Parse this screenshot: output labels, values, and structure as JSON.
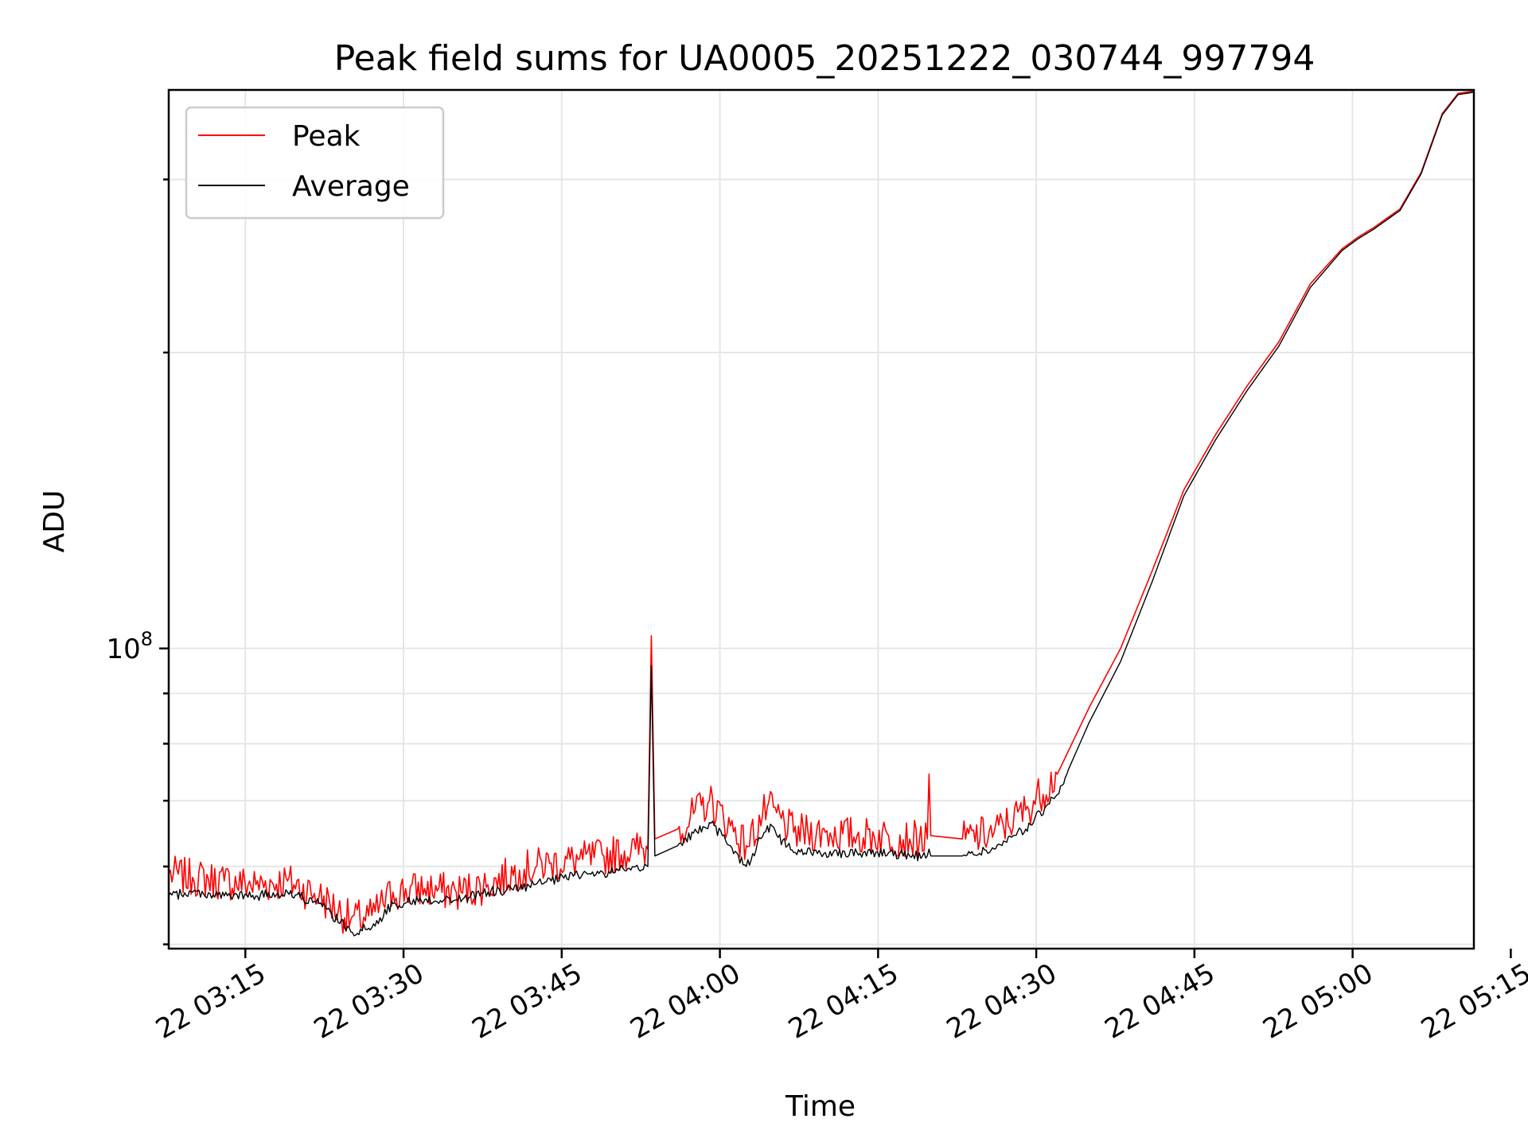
{
  "chart_data": {
    "type": "line",
    "title": "Peak field sums for UA0005_20251222_030744_997794",
    "xlabel": "Time",
    "ylabel": "ADU",
    "yscale": "log",
    "grid": true,
    "legend_position": "top-left",
    "x_ticks": [
      "22 03:15",
      "22 03:30",
      "22 03:45",
      "22 04:00",
      "22 04:15",
      "22 04:30",
      "22 04:45",
      "22 05:00",
      "22 05:15"
    ],
    "y_tick_labels": [
      {
        "base": "10",
        "exponent": "8",
        "value": 100000000
      }
    ],
    "xlim": [
      "2025-12-22 03:07:44",
      "2025-12-22 05:11:30"
    ],
    "ylim": [
      49500000,
      370000000
    ],
    "series": [
      {
        "name": "Peak",
        "color": "#ff0000",
        "points": [
          [
            "2025-12-22 03:07:44",
            59000000
          ],
          [
            "2025-12-22 03:10:00",
            58500000
          ],
          [
            "2025-12-22 03:13:00",
            58000000
          ],
          [
            "2025-12-22 03:16:00",
            57500000
          ],
          [
            "2025-12-22 03:19:00",
            58000000
          ],
          [
            "2025-12-22 03:22:00",
            56000000
          ],
          [
            "2025-12-22 03:25:00",
            53000000
          ],
          [
            "2025-12-22 03:27:00",
            53500000
          ],
          [
            "2025-12-22 03:29:00",
            56500000
          ],
          [
            "2025-12-22 03:32:00",
            57000000
          ],
          [
            "2025-12-22 03:35:00",
            56500000
          ],
          [
            "2025-12-22 03:38:00",
            57500000
          ],
          [
            "2025-12-22 03:41:00",
            59500000
          ],
          [
            "2025-12-22 03:44:00",
            60500000
          ],
          [
            "2025-12-22 03:47:00",
            61000000
          ],
          [
            "2025-12-22 03:49:00",
            61500000
          ],
          [
            "2025-12-22 03:52:00",
            62500000
          ],
          [
            "2025-12-22 03:53:10",
            62500000
          ],
          [
            "2025-12-22 03:53:30",
            103000000
          ],
          [
            "2025-12-22 03:53:50",
            64000000
          ],
          [
            "2025-12-22 03:56:00",
            65500000
          ],
          [
            "2025-12-22 03:59:00",
            70000000
          ],
          [
            "2025-12-22 04:01:00",
            66000000
          ],
          [
            "2025-12-22 04:02:30",
            63000000
          ],
          [
            "2025-12-22 04:04:30",
            69000000
          ],
          [
            "2025-12-22 04:07:00",
            65000000
          ],
          [
            "2025-12-22 04:10:00",
            65000000
          ],
          [
            "2025-12-22 04:13:00",
            64500000
          ],
          [
            "2025-12-22 04:16:00",
            64500000
          ],
          [
            "2025-12-22 04:18:00",
            64000000
          ],
          [
            "2025-12-22 04:19:40",
            64000000
          ],
          [
            "2025-12-22 04:19:50",
            74500000
          ],
          [
            "2025-12-22 04:20:00",
            64500000
          ],
          [
            "2025-12-22 04:23:00",
            64000000
          ],
          [
            "2025-12-22 04:26:00",
            65000000
          ],
          [
            "2025-12-22 04:29:00",
            68500000
          ],
          [
            "2025-12-22 04:32:00",
            74500000
          ],
          [
            "2025-12-22 04:35:00",
            87000000
          ],
          [
            "2025-12-22 04:38:00",
            100000000
          ],
          [
            "2025-12-22 04:41:00",
            120000000
          ],
          [
            "2025-12-22 04:44:00",
            145000000
          ],
          [
            "2025-12-22 04:47:00",
            165000000
          ],
          [
            "2025-12-22 04:50:00",
            185000000
          ],
          [
            "2025-12-22 04:53:00",
            205000000
          ],
          [
            "2025-12-22 04:56:00",
            235000000
          ],
          [
            "2025-12-22 04:59:00",
            255000000
          ],
          [
            "2025-12-22 05:00:30",
            262000000
          ],
          [
            "2025-12-22 05:02:00",
            268000000
          ],
          [
            "2025-12-22 05:04:30",
            280000000
          ],
          [
            "2025-12-22 05:06:30",
            305000000
          ],
          [
            "2025-12-22 05:08:30",
            350000000
          ],
          [
            "2025-12-22 05:10:00",
            367000000
          ],
          [
            "2025-12-22 05:11:30",
            369000000
          ]
        ]
      },
      {
        "name": "Average",
        "color": "#000000",
        "points": [
          [
            "2025-12-22 03:07:44",
            56000000
          ],
          [
            "2025-12-22 03:10:00",
            56500000
          ],
          [
            "2025-12-22 03:13:00",
            56000000
          ],
          [
            "2025-12-22 03:16:00",
            56000000
          ],
          [
            "2025-12-22 03:19:00",
            56500000
          ],
          [
            "2025-12-22 03:22:00",
            55000000
          ],
          [
            "2025-12-22 03:25:00",
            51500000
          ],
          [
            "2025-12-22 03:27:00",
            52000000
          ],
          [
            "2025-12-22 03:29:00",
            55000000
          ],
          [
            "2025-12-22 03:32:00",
            55500000
          ],
          [
            "2025-12-22 03:35:00",
            55500000
          ],
          [
            "2025-12-22 03:38:00",
            56500000
          ],
          [
            "2025-12-22 03:41:00",
            57000000
          ],
          [
            "2025-12-22 03:44:00",
            58000000
          ],
          [
            "2025-12-22 03:47:00",
            59000000
          ],
          [
            "2025-12-22 03:49:00",
            59000000
          ],
          [
            "2025-12-22 03:52:00",
            60000000
          ],
          [
            "2025-12-22 03:53:10",
            60000000
          ],
          [
            "2025-12-22 03:53:30",
            96000000
          ],
          [
            "2025-12-22 03:53:50",
            61500000
          ],
          [
            "2025-12-22 03:56:00",
            63000000
          ],
          [
            "2025-12-22 03:59:00",
            66500000
          ],
          [
            "2025-12-22 04:01:00",
            63000000
          ],
          [
            "2025-12-22 04:02:30",
            60000000
          ],
          [
            "2025-12-22 04:04:30",
            66000000
          ],
          [
            "2025-12-22 04:07:00",
            62000000
          ],
          [
            "2025-12-22 04:10:00",
            62000000
          ],
          [
            "2025-12-22 04:13:00",
            62000000
          ],
          [
            "2025-12-22 04:16:00",
            62000000
          ],
          [
            "2025-12-22 04:18:00",
            61500000
          ],
          [
            "2025-12-22 04:19:40",
            61500000
          ],
          [
            "2025-12-22 04:19:50",
            62500000
          ],
          [
            "2025-12-22 04:20:00",
            61500000
          ],
          [
            "2025-12-22 04:23:00",
            61500000
          ],
          [
            "2025-12-22 04:26:00",
            62500000
          ],
          [
            "2025-12-22 04:29:00",
            65500000
          ],
          [
            "2025-12-22 04:32:00",
            71000000
          ],
          [
            "2025-12-22 04:35:00",
            84000000
          ],
          [
            "2025-12-22 04:38:00",
            97000000
          ],
          [
            "2025-12-22 04:41:00",
            117000000
          ],
          [
            "2025-12-22 04:44:00",
            143000000
          ],
          [
            "2025-12-22 04:47:00",
            163000000
          ],
          [
            "2025-12-22 04:50:00",
            183000000
          ],
          [
            "2025-12-22 04:53:00",
            203000000
          ],
          [
            "2025-12-22 04:56:00",
            233000000
          ],
          [
            "2025-12-22 04:59:00",
            254000000
          ],
          [
            "2025-12-22 05:00:30",
            261000000
          ],
          [
            "2025-12-22 05:02:00",
            267000000
          ],
          [
            "2025-12-22 05:04:30",
            279000000
          ],
          [
            "2025-12-22 05:06:30",
            304000000
          ],
          [
            "2025-12-22 05:08:30",
            349000000
          ],
          [
            "2025-12-22 05:10:00",
            366000000
          ],
          [
            "2025-12-22 05:11:30",
            368000000
          ]
        ]
      }
    ]
  }
}
